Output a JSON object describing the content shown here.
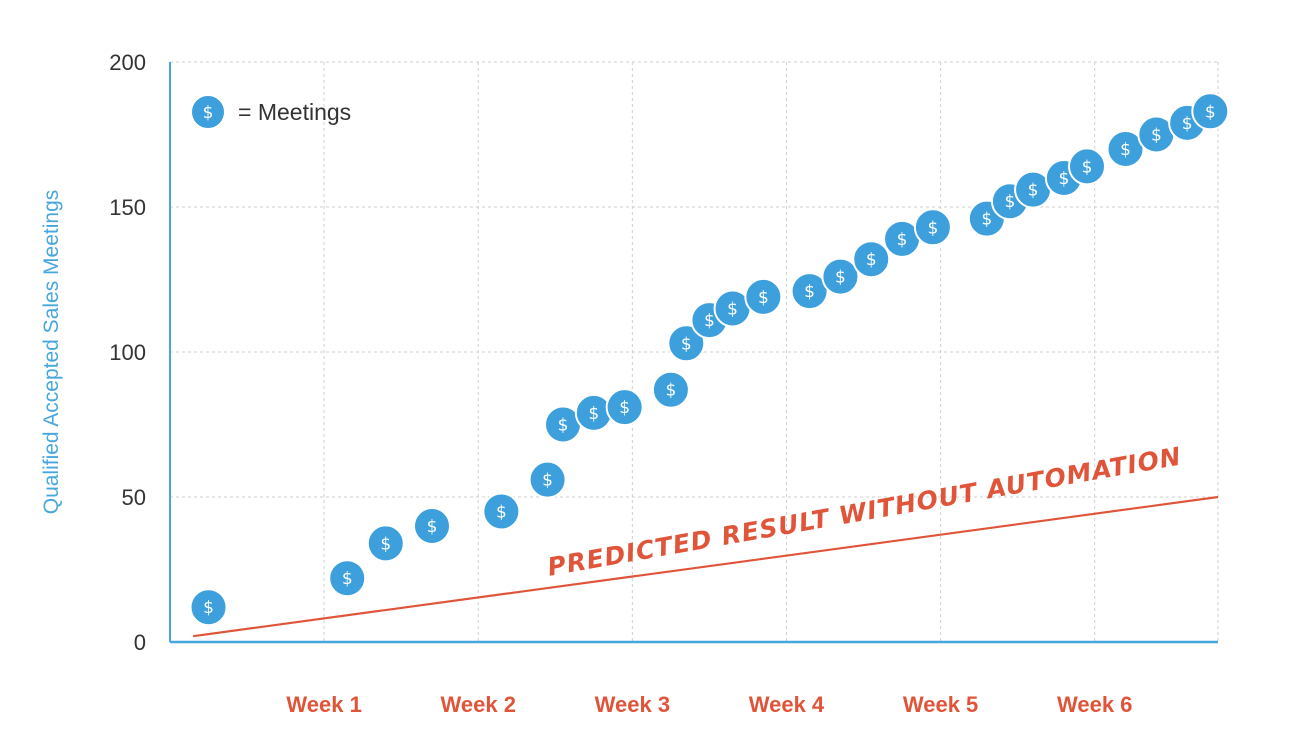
{
  "colors": {
    "axis": "#47a7dd",
    "point": "#3d9fdb",
    "point_stroke": "#ffffff",
    "grid": "#cfcfcf",
    "trend": "#e0553a",
    "week_label": "#e0553a",
    "ylabel": "#47a7dd"
  },
  "icons": {
    "point": "dollar-coin-icon",
    "glyph": "$"
  },
  "chart_data": {
    "type": "scatter",
    "title": "",
    "xlabel": "",
    "ylabel": "Qualified Accepted Sales Meetings",
    "ylim": [
      0,
      200
    ],
    "yticks": [
      0,
      50,
      100,
      150,
      200
    ],
    "xlim": [
      0,
      6.8
    ],
    "xticks": [
      {
        "label": "Week 1",
        "x": 1
      },
      {
        "label": "Week 2",
        "x": 2
      },
      {
        "label": "Week 3",
        "x": 3
      },
      {
        "label": "Week 4",
        "x": 4
      },
      {
        "label": "Week 5",
        "x": 5
      },
      {
        "label": "Week 6",
        "x": 6
      }
    ],
    "grid": true,
    "legend": {
      "label": "= Meetings",
      "position": "top-left"
    },
    "series": [
      {
        "name": "Meetings",
        "points": [
          {
            "x": 0.25,
            "y": 12
          },
          {
            "x": 1.15,
            "y": 22
          },
          {
            "x": 1.4,
            "y": 34
          },
          {
            "x": 1.7,
            "y": 40
          },
          {
            "x": 2.15,
            "y": 45
          },
          {
            "x": 2.45,
            "y": 56
          },
          {
            "x": 2.55,
            "y": 75
          },
          {
            "x": 2.75,
            "y": 79
          },
          {
            "x": 2.95,
            "y": 81
          },
          {
            "x": 3.25,
            "y": 87
          },
          {
            "x": 3.35,
            "y": 103
          },
          {
            "x": 3.5,
            "y": 111
          },
          {
            "x": 3.65,
            "y": 115
          },
          {
            "x": 3.85,
            "y": 119
          },
          {
            "x": 4.15,
            "y": 121
          },
          {
            "x": 4.35,
            "y": 126
          },
          {
            "x": 4.55,
            "y": 132
          },
          {
            "x": 4.75,
            "y": 139
          },
          {
            "x": 4.95,
            "y": 143
          },
          {
            "x": 5.3,
            "y": 146
          },
          {
            "x": 5.45,
            "y": 152
          },
          {
            "x": 5.6,
            "y": 156
          },
          {
            "x": 5.8,
            "y": 160
          },
          {
            "x": 5.95,
            "y": 164
          },
          {
            "x": 6.2,
            "y": 170
          },
          {
            "x": 6.4,
            "y": 175
          },
          {
            "x": 6.6,
            "y": 179
          },
          {
            "x": 6.75,
            "y": 183
          }
        ]
      }
    ],
    "trend_line": {
      "label": "PREDICTED RESULT WITHOUT AUTOMATION",
      "points": [
        {
          "x": 0.15,
          "y": 2
        },
        {
          "x": 6.8,
          "y": 50
        }
      ]
    }
  }
}
